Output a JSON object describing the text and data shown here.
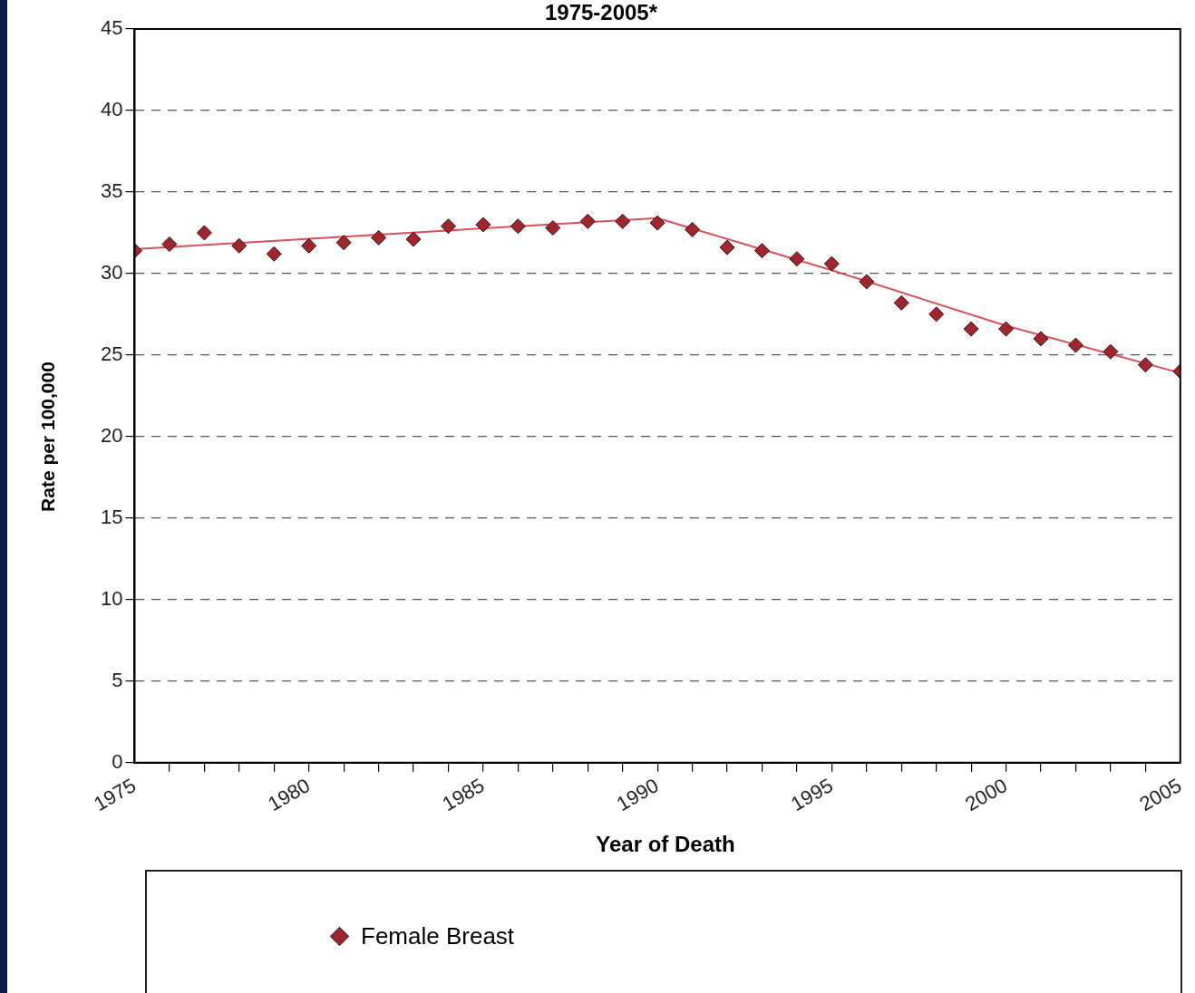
{
  "chart_data": {
    "type": "scatter",
    "title": "1975-2005*",
    "xlabel": "Year of Death",
    "ylabel": "Rate per 100,000",
    "xlim": [
      1975,
      2005
    ],
    "xticks": [
      1975,
      {
        "value": 1976,
        "label": null
      },
      {
        "value": 1977,
        "label": null
      },
      {
        "value": 1978,
        "label": null
      },
      {
        "value": 1979,
        "label": null
      },
      1980,
      {
        "value": 1981,
        "label": null
      },
      {
        "value": 1982,
        "label": null
      },
      {
        "value": 1983,
        "label": null
      },
      {
        "value": 1984,
        "label": null
      },
      1985,
      {
        "value": 1986,
        "label": null
      },
      {
        "value": 1987,
        "label": null
      },
      {
        "value": 1988,
        "label": null
      },
      {
        "value": 1989,
        "label": null
      },
      1990,
      {
        "value": 1991,
        "label": null
      },
      {
        "value": 1992,
        "label": null
      },
      {
        "value": 1993,
        "label": null
      },
      {
        "value": 1994,
        "label": null
      },
      1995,
      {
        "value": 1996,
        "label": null
      },
      {
        "value": 1997,
        "label": null
      },
      {
        "value": 1998,
        "label": null
      },
      {
        "value": 1999,
        "label": null
      },
      2000,
      {
        "value": 2001,
        "label": null
      },
      {
        "value": 2002,
        "label": null
      },
      {
        "value": 2003,
        "label": null
      },
      {
        "value": 2004,
        "label": null
      },
      2005
    ],
    "ylim": [
      0,
      45
    ],
    "yticks": [
      0,
      5,
      10,
      15,
      20,
      25,
      30,
      35,
      40,
      45
    ],
    "grid": "y",
    "legend": "bottom",
    "marker": "diamond",
    "series": [
      {
        "name": "Female Breast",
        "type": "scatter",
        "color": "#a0262e",
        "x": [
          1975,
          1976,
          1977,
          1978,
          1979,
          1980,
          1981,
          1982,
          1983,
          1984,
          1985,
          1986,
          1987,
          1988,
          1989,
          1990,
          1991,
          1992,
          1993,
          1994,
          1995,
          1996,
          1997,
          1998,
          1999,
          2000,
          2001,
          2002,
          2003,
          2004,
          2005
        ],
        "values": [
          31.4,
          31.8,
          32.5,
          31.7,
          31.2,
          31.7,
          31.9,
          32.2,
          32.1,
          32.9,
          33.0,
          32.9,
          32.8,
          33.2,
          33.2,
          33.1,
          32.7,
          31.6,
          31.4,
          30.9,
          30.6,
          29.5,
          28.2,
          27.5,
          26.6,
          26.6,
          26.0,
          25.6,
          25.2,
          24.4,
          24.0
        ]
      },
      {
        "type": "line",
        "color": "#d9505a",
        "x": [
          1975,
          1990,
          1995,
          2000,
          2005
        ],
        "values": [
          31.5,
          33.4,
          30.2,
          26.8,
          23.9
        ],
        "line_style": "solid",
        "marker": "none"
      }
    ]
  }
}
